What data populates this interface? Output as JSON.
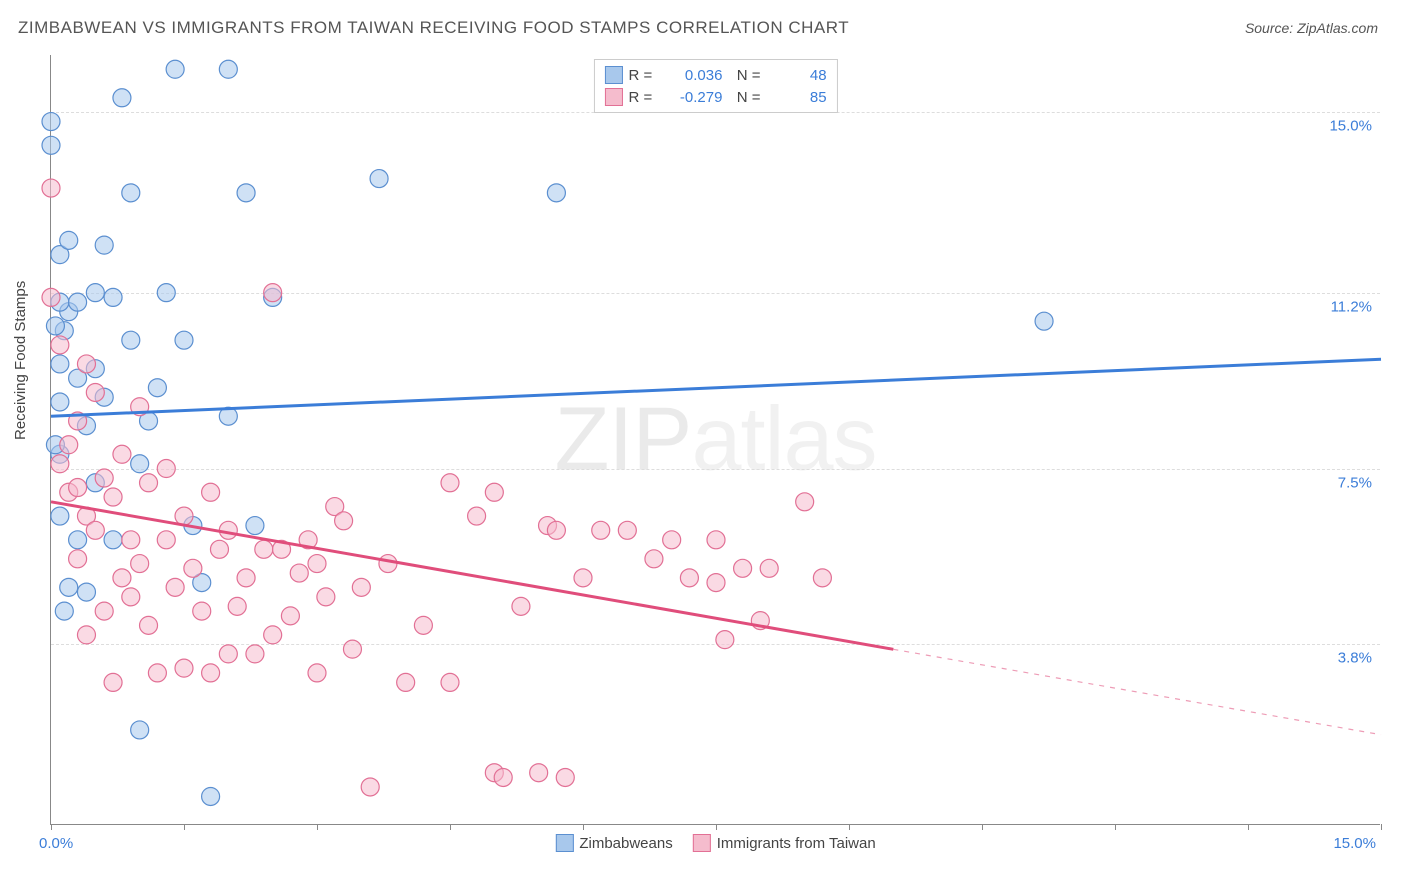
{
  "title": "ZIMBABWEAN VS IMMIGRANTS FROM TAIWAN RECEIVING FOOD STAMPS CORRELATION CHART",
  "source": "Source: ZipAtlas.com",
  "ylabel": "Receiving Food Stamps",
  "watermark_a": "ZIP",
  "watermark_b": "atlas",
  "chart": {
    "type": "scatter",
    "xlim": [
      0,
      15
    ],
    "ylim": [
      0,
      16.2
    ],
    "x_axis_min_label": "0.0%",
    "x_axis_max_label": "15.0%",
    "y_ticks": [
      {
        "v": 3.8,
        "label": "3.8%"
      },
      {
        "v": 7.5,
        "label": "7.5%"
      },
      {
        "v": 11.2,
        "label": "11.2%"
      },
      {
        "v": 15.0,
        "label": "15.0%"
      }
    ],
    "x_tick_positions": [
      0,
      1.5,
      3.0,
      4.5,
      6.0,
      7.5,
      9.0,
      10.5,
      12.0,
      13.5,
      15.0
    ],
    "grid_color": "#dddddd",
    "axis_color": "#888888",
    "background": "#ffffff",
    "series": [
      {
        "name": "Zimbabweans",
        "color_fill": "#a8c8ec",
        "color_stroke": "#5b8fd0",
        "fill_opacity": 0.55,
        "marker_r": 9,
        "R": "0.036",
        "N": "48",
        "trend": {
          "x1": 0,
          "y1": 8.6,
          "x2": 15,
          "y2": 9.8,
          "solid_end_x": 15,
          "stroke": "#3b7dd8",
          "width": 3
        },
        "points": [
          [
            0.0,
            14.8
          ],
          [
            0.1,
            12.0
          ],
          [
            0.2,
            10.8
          ],
          [
            0.15,
            10.4
          ],
          [
            0.1,
            6.5
          ],
          [
            0.1,
            7.8
          ],
          [
            0.1,
            8.9
          ],
          [
            0.15,
            4.5
          ],
          [
            0.2,
            5.0
          ],
          [
            0.1,
            11.0
          ],
          [
            0.3,
            9.4
          ],
          [
            0.4,
            8.4
          ],
          [
            0.5,
            11.2
          ],
          [
            0.6,
            12.2
          ],
          [
            0.7,
            11.1
          ],
          [
            0.8,
            15.3
          ],
          [
            0.9,
            13.3
          ],
          [
            1.0,
            2.0
          ],
          [
            1.1,
            8.5
          ],
          [
            1.2,
            9.2
          ],
          [
            1.3,
            11.2
          ],
          [
            1.4,
            15.9
          ],
          [
            1.5,
            10.2
          ],
          [
            1.6,
            6.3
          ],
          [
            1.7,
            5.1
          ],
          [
            1.8,
            0.6
          ],
          [
            2.0,
            15.9
          ],
          [
            2.0,
            8.6
          ],
          [
            2.2,
            13.3
          ],
          [
            2.3,
            6.3
          ],
          [
            2.5,
            11.1
          ],
          [
            3.7,
            13.6
          ],
          [
            5.7,
            13.3
          ],
          [
            11.2,
            10.6
          ],
          [
            0.1,
            9.7
          ],
          [
            0.3,
            6.0
          ],
          [
            0.5,
            7.2
          ],
          [
            0.4,
            4.9
          ],
          [
            0.2,
            12.3
          ],
          [
            0.0,
            14.3
          ],
          [
            1.0,
            7.6
          ],
          [
            0.6,
            9.0
          ],
          [
            0.9,
            10.2
          ],
          [
            0.05,
            10.5
          ],
          [
            0.05,
            8.0
          ],
          [
            0.3,
            11.0
          ],
          [
            0.5,
            9.6
          ],
          [
            0.7,
            6.0
          ]
        ]
      },
      {
        "name": "Immigrants from Taiwan",
        "color_fill": "#f5bccd",
        "color_stroke": "#e27095",
        "fill_opacity": 0.55,
        "marker_r": 9,
        "R": "-0.279",
        "N": "85",
        "trend": {
          "x1": 0,
          "y1": 6.8,
          "x2": 15,
          "y2": 1.9,
          "solid_end_x": 9.5,
          "stroke": "#e04d7b",
          "width": 3
        },
        "points": [
          [
            0.0,
            13.4
          ],
          [
            0.0,
            11.1
          ],
          [
            0.1,
            10.1
          ],
          [
            0.1,
            7.6
          ],
          [
            0.2,
            7.0
          ],
          [
            0.2,
            8.0
          ],
          [
            0.3,
            7.1
          ],
          [
            0.3,
            5.6
          ],
          [
            0.3,
            8.5
          ],
          [
            0.4,
            9.7
          ],
          [
            0.4,
            6.5
          ],
          [
            0.4,
            4.0
          ],
          [
            0.5,
            9.1
          ],
          [
            0.5,
            6.2
          ],
          [
            0.6,
            7.3
          ],
          [
            0.6,
            4.5
          ],
          [
            0.7,
            6.9
          ],
          [
            0.7,
            3.0
          ],
          [
            0.8,
            7.8
          ],
          [
            0.8,
            5.2
          ],
          [
            0.9,
            4.8
          ],
          [
            0.9,
            6.0
          ],
          [
            1.0,
            8.8
          ],
          [
            1.0,
            5.5
          ],
          [
            1.1,
            7.2
          ],
          [
            1.1,
            4.2
          ],
          [
            1.2,
            3.2
          ],
          [
            1.3,
            6.0
          ],
          [
            1.3,
            7.5
          ],
          [
            1.4,
            5.0
          ],
          [
            1.5,
            3.3
          ],
          [
            1.5,
            6.5
          ],
          [
            1.6,
            5.4
          ],
          [
            1.7,
            4.5
          ],
          [
            1.8,
            3.2
          ],
          [
            1.8,
            7.0
          ],
          [
            1.9,
            5.8
          ],
          [
            2.0,
            6.2
          ],
          [
            2.0,
            3.6
          ],
          [
            2.1,
            4.6
          ],
          [
            2.2,
            5.2
          ],
          [
            2.3,
            3.6
          ],
          [
            2.4,
            5.8
          ],
          [
            2.5,
            4.0
          ],
          [
            2.5,
            11.2
          ],
          [
            2.6,
            5.8
          ],
          [
            2.7,
            4.4
          ],
          [
            2.8,
            5.3
          ],
          [
            2.9,
            6.0
          ],
          [
            3.0,
            3.2
          ],
          [
            3.0,
            5.5
          ],
          [
            3.1,
            4.8
          ],
          [
            3.2,
            6.7
          ],
          [
            3.4,
            3.7
          ],
          [
            3.5,
            5.0
          ],
          [
            3.6,
            0.8
          ],
          [
            3.8,
            5.5
          ],
          [
            4.0,
            3.0
          ],
          [
            4.2,
            4.2
          ],
          [
            4.5,
            7.2
          ],
          [
            4.8,
            6.5
          ],
          [
            5.0,
            1.1
          ],
          [
            5.0,
            7.0
          ],
          [
            5.1,
            1.0
          ],
          [
            5.3,
            4.6
          ],
          [
            5.5,
            1.1
          ],
          [
            5.6,
            6.3
          ],
          [
            5.7,
            6.2
          ],
          [
            5.8,
            1.0
          ],
          [
            6.0,
            5.2
          ],
          [
            6.2,
            6.2
          ],
          [
            6.5,
            6.2
          ],
          [
            6.8,
            5.6
          ],
          [
            7.0,
            6.0
          ],
          [
            7.2,
            5.2
          ],
          [
            7.5,
            5.1
          ],
          [
            7.5,
            6.0
          ],
          [
            7.6,
            3.9
          ],
          [
            7.8,
            5.4
          ],
          [
            8.0,
            4.3
          ],
          [
            8.1,
            5.4
          ],
          [
            8.5,
            6.8
          ],
          [
            8.7,
            5.2
          ],
          [
            4.5,
            3.0
          ],
          [
            3.3,
            6.4
          ]
        ]
      }
    ],
    "legend_bottom": [
      {
        "swatch_fill": "#a8c8ec",
        "swatch_stroke": "#5b8fd0",
        "label": "Zimbabweans"
      },
      {
        "swatch_fill": "#f5bccd",
        "swatch_stroke": "#e27095",
        "label": "Immigrants from Taiwan"
      }
    ]
  }
}
